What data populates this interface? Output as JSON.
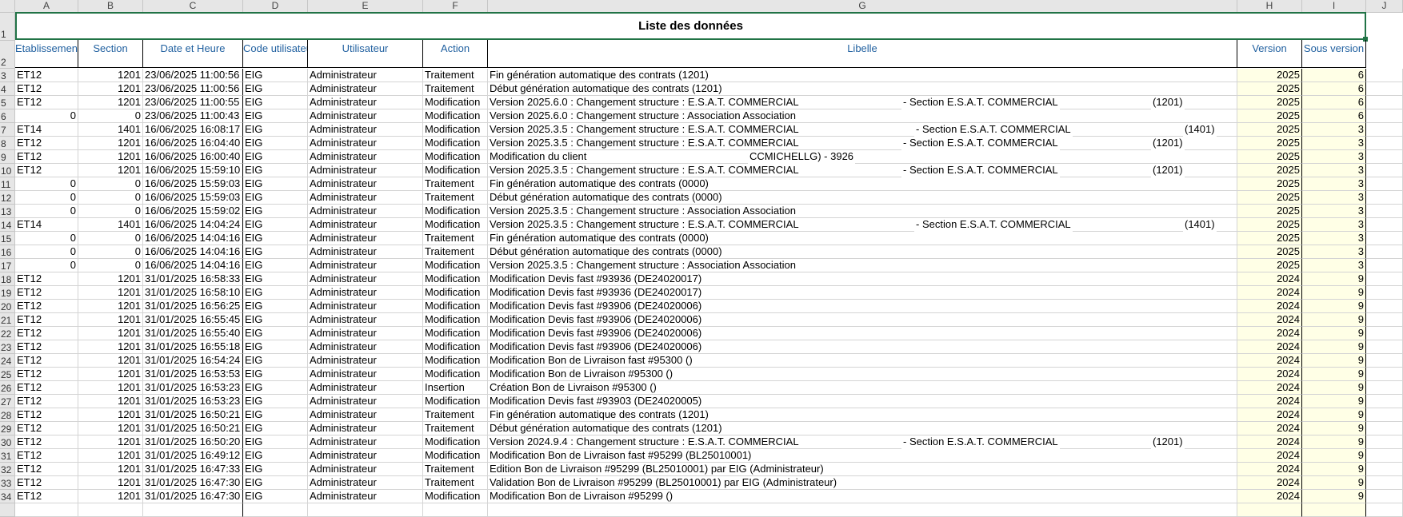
{
  "column_letters": [
    "A",
    "B",
    "C",
    "D",
    "E",
    "F",
    "G",
    "H",
    "I",
    "J"
  ],
  "title": "Liste des données",
  "headers": [
    "Etablissement",
    "Section",
    "Date et Heure",
    "Code utilisateur",
    "Utilisateur",
    "Action",
    "Libelle",
    "Version",
    "Sous version"
  ],
  "colors": {
    "header_text": "#1f5f9f",
    "selection": "#217346",
    "version_fill": "#ffffe6"
  },
  "rows": [
    {
      "n": "3",
      "etab": "ET12",
      "section": "1201",
      "date": "23/06/2025 11:00:56",
      "code": "EIG",
      "user": "Administrateur",
      "action": "Traitement",
      "lib": "Fin génération automatique des contrats  (1201)",
      "version": "2025",
      "sous": "6"
    },
    {
      "n": "4",
      "etab": "ET12",
      "section": "1201",
      "date": "23/06/2025 11:00:56",
      "code": "EIG",
      "user": "Administrateur",
      "action": "Traitement",
      "lib": "Début génération automatique des contrats  (1201)",
      "version": "2025",
      "sous": "6"
    },
    {
      "n": "5",
      "etab": "ET12",
      "section": "1201",
      "date": "23/06/2025 11:00:55",
      "code": "EIG",
      "user": "Administrateur",
      "action": "Modification",
      "lib": "Version 2025.6.0 : Changement structure : E.S.A.T. COMMERCIAL",
      "lib_b": "- Section E.S.A.T. COMMERCIAL",
      "lib_c": "(1201)",
      "version": "2025",
      "sous": "6"
    },
    {
      "n": "6",
      "etab": "0",
      "section": "0",
      "date": "23/06/2025 11:00:43",
      "code": "EIG",
      "user": "Administrateur",
      "action": "Modification",
      "lib": "Version 2025.6.0 : Changement structure : Association Association",
      "version": "2025",
      "sous": "6"
    },
    {
      "n": "7",
      "etab": "ET14",
      "section": "1401",
      "date": "16/06/2025 16:08:17",
      "code": "EIG",
      "user": "Administrateur",
      "action": "Modification",
      "lib": "Version 2025.3.5 : Changement structure : E.S.A.T. COMMERCIAL",
      "lib_b": "- Section E.S.A.T. COMMERCIAL",
      "lib_c": "(1401)",
      "version": "2025",
      "sous": "3"
    },
    {
      "n": "8",
      "etab": "ET12",
      "section": "1201",
      "date": "16/06/2025 16:04:40",
      "code": "EIG",
      "user": "Administrateur",
      "action": "Modification",
      "lib": "Version 2025.3.5 : Changement structure : E.S.A.T. COMMERCIAL",
      "lib_b": "- Section E.S.A.T. COMMERCIAL",
      "lib_c": "(1201)",
      "version": "2025",
      "sous": "3"
    },
    {
      "n": "9",
      "etab": "ET12",
      "section": "1201",
      "date": "16/06/2025 16:00:40",
      "code": "EIG",
      "user": "Administrateur",
      "action": "Modification",
      "lib": "Modification du client",
      "lib_b": "CCMICHELLG) - 3926",
      "version": "2025",
      "sous": "3"
    },
    {
      "n": "10",
      "etab": "ET12",
      "section": "1201",
      "date": "16/06/2025 15:59:10",
      "code": "EIG",
      "user": "Administrateur",
      "action": "Modification",
      "lib": "Version 2025.3.5 : Changement structure : E.S.A.T. COMMERCIAL",
      "lib_b": "- Section E.S.A.T. COMMERCIAL",
      "lib_c": "(1201)",
      "version": "2025",
      "sous": "3"
    },
    {
      "n": "11",
      "etab": "0",
      "section": "0",
      "date": "16/06/2025 15:59:03",
      "code": "EIG",
      "user": "Administrateur",
      "action": "Traitement",
      "lib": "Fin génération automatique des contrats  (0000)",
      "version": "2025",
      "sous": "3"
    },
    {
      "n": "12",
      "etab": "0",
      "section": "0",
      "date": "16/06/2025 15:59:03",
      "code": "EIG",
      "user": "Administrateur",
      "action": "Traitement",
      "lib": "Début génération automatique des contrats  (0000)",
      "version": "2025",
      "sous": "3"
    },
    {
      "n": "13",
      "etab": "0",
      "section": "0",
      "date": "16/06/2025 15:59:02",
      "code": "EIG",
      "user": "Administrateur",
      "action": "Modification",
      "lib": "Version 2025.3.5 : Changement structure : Association Association",
      "version": "2025",
      "sous": "3"
    },
    {
      "n": "14",
      "etab": "ET14",
      "section": "1401",
      "date": "16/06/2025 14:04:24",
      "code": "EIG",
      "user": "Administrateur",
      "action": "Modification",
      "lib": "Version 2025.3.5 : Changement structure : E.S.A.T. COMMERCIAL",
      "lib_b": "- Section E.S.A.T. COMMERCIAL",
      "lib_c": "(1401)",
      "version": "2025",
      "sous": "3"
    },
    {
      "n": "15",
      "etab": "0",
      "section": "0",
      "date": "16/06/2025 14:04:16",
      "code": "EIG",
      "user": "Administrateur",
      "action": "Traitement",
      "lib": "Fin génération automatique des contrats  (0000)",
      "version": "2025",
      "sous": "3"
    },
    {
      "n": "16",
      "etab": "0",
      "section": "0",
      "date": "16/06/2025 14:04:16",
      "code": "EIG",
      "user": "Administrateur",
      "action": "Traitement",
      "lib": "Début génération automatique des contrats  (0000)",
      "version": "2025",
      "sous": "3"
    },
    {
      "n": "17",
      "etab": "0",
      "section": "0",
      "date": "16/06/2025 14:04:16",
      "code": "EIG",
      "user": "Administrateur",
      "action": "Modification",
      "lib": "Version 2025.3.5 : Changement structure : Association Association",
      "version": "2025",
      "sous": "3"
    },
    {
      "n": "18",
      "etab": "ET12",
      "section": "1201",
      "date": "31/01/2025 16:58:33",
      "code": "EIG",
      "user": "Administrateur",
      "action": "Modification",
      "lib": "Modification Devis fast #93936 (DE24020017)",
      "version": "2024",
      "sous": "9"
    },
    {
      "n": "19",
      "etab": "ET12",
      "section": "1201",
      "date": "31/01/2025 16:58:10",
      "code": "EIG",
      "user": "Administrateur",
      "action": "Modification",
      "lib": "Modification Devis fast #93936 (DE24020017)",
      "version": "2024",
      "sous": "9"
    },
    {
      "n": "20",
      "etab": "ET12",
      "section": "1201",
      "date": "31/01/2025 16:56:25",
      "code": "EIG",
      "user": "Administrateur",
      "action": "Modification",
      "lib": "Modification Devis fast #93906 (DE24020006)",
      "version": "2024",
      "sous": "9"
    },
    {
      "n": "21",
      "etab": "ET12",
      "section": "1201",
      "date": "31/01/2025 16:55:45",
      "code": "EIG",
      "user": "Administrateur",
      "action": "Modification",
      "lib": "Modification Devis fast #93906 (DE24020006)",
      "version": "2024",
      "sous": "9"
    },
    {
      "n": "22",
      "etab": "ET12",
      "section": "1201",
      "date": "31/01/2025 16:55:40",
      "code": "EIG",
      "user": "Administrateur",
      "action": "Modification",
      "lib": "Modification Devis fast #93906 (DE24020006)",
      "version": "2024",
      "sous": "9"
    },
    {
      "n": "23",
      "etab": "ET12",
      "section": "1201",
      "date": "31/01/2025 16:55:18",
      "code": "EIG",
      "user": "Administrateur",
      "action": "Modification",
      "lib": "Modification Devis fast #93906 (DE24020006)",
      "version": "2024",
      "sous": "9"
    },
    {
      "n": "24",
      "etab": "ET12",
      "section": "1201",
      "date": "31/01/2025 16:54:24",
      "code": "EIG",
      "user": "Administrateur",
      "action": "Modification",
      "lib": "Modification Bon de Livraison fast #95300 ()",
      "version": "2024",
      "sous": "9"
    },
    {
      "n": "25",
      "etab": "ET12",
      "section": "1201",
      "date": "31/01/2025 16:53:53",
      "code": "EIG",
      "user": "Administrateur",
      "action": "Modification",
      "lib": "Modification Bon de Livraison  #95300 ()",
      "version": "2024",
      "sous": "9"
    },
    {
      "n": "26",
      "etab": "ET12",
      "section": "1201",
      "date": "31/01/2025 16:53:23",
      "code": "EIG",
      "user": "Administrateur",
      "action": "Insertion",
      "lib": "Création Bon de Livraison  #95300 ()",
      "version": "2024",
      "sous": "9"
    },
    {
      "n": "27",
      "etab": "ET12",
      "section": "1201",
      "date": "31/01/2025 16:53:23",
      "code": "EIG",
      "user": "Administrateur",
      "action": "Modification",
      "lib": "Modification Devis fast #93903 (DE24020005)",
      "version": "2024",
      "sous": "9"
    },
    {
      "n": "28",
      "etab": "ET12",
      "section": "1201",
      "date": "31/01/2025 16:50:21",
      "code": "EIG",
      "user": "Administrateur",
      "action": "Traitement",
      "lib": "Fin génération automatique des contrats  (1201)",
      "version": "2024",
      "sous": "9"
    },
    {
      "n": "29",
      "etab": "ET12",
      "section": "1201",
      "date": "31/01/2025 16:50:21",
      "code": "EIG",
      "user": "Administrateur",
      "action": "Traitement",
      "lib": "Début génération automatique des contrats  (1201)",
      "version": "2024",
      "sous": "9"
    },
    {
      "n": "30",
      "etab": "ET12",
      "section": "1201",
      "date": "31/01/2025 16:50:20",
      "code": "EIG",
      "user": "Administrateur",
      "action": "Modification",
      "lib": "Version 2024.9.4 : Changement structure : E.S.A.T. COMMERCIAL",
      "lib_b": "- Section E.S.A.T. COMMERCIAL",
      "lib_c": "(1201)",
      "version": "2024",
      "sous": "9"
    },
    {
      "n": "31",
      "etab": "ET12",
      "section": "1201",
      "date": "31/01/2025 16:49:12",
      "code": "EIG",
      "user": "Administrateur",
      "action": "Modification",
      "lib": "Modification Bon de Livraison fast #95299 (BL25010001)",
      "version": "2024",
      "sous": "9"
    },
    {
      "n": "32",
      "etab": "ET12",
      "section": "1201",
      "date": "31/01/2025 16:47:33",
      "code": "EIG",
      "user": "Administrateur",
      "action": "Traitement",
      "lib": "Edition Bon de Livraison  #95299 (BL25010001) par EIG (Administrateur)",
      "version": "2024",
      "sous": "9"
    },
    {
      "n": "33",
      "etab": "ET12",
      "section": "1201",
      "date": "31/01/2025 16:47:30",
      "code": "EIG",
      "user": "Administrateur",
      "action": "Traitement",
      "lib": "Validation Bon de Livraison  #95299 (BL25010001) par EIG (Administrateur)",
      "version": "2024",
      "sous": "9"
    },
    {
      "n": "34",
      "etab": "ET12",
      "section": "1201",
      "date": "31/01/2025 16:47:30",
      "code": "EIG",
      "user": "Administrateur",
      "action": "Modification",
      "lib": "Modification Bon de Livraison  #95299 ()",
      "version": "2024",
      "sous": "9"
    }
  ]
}
